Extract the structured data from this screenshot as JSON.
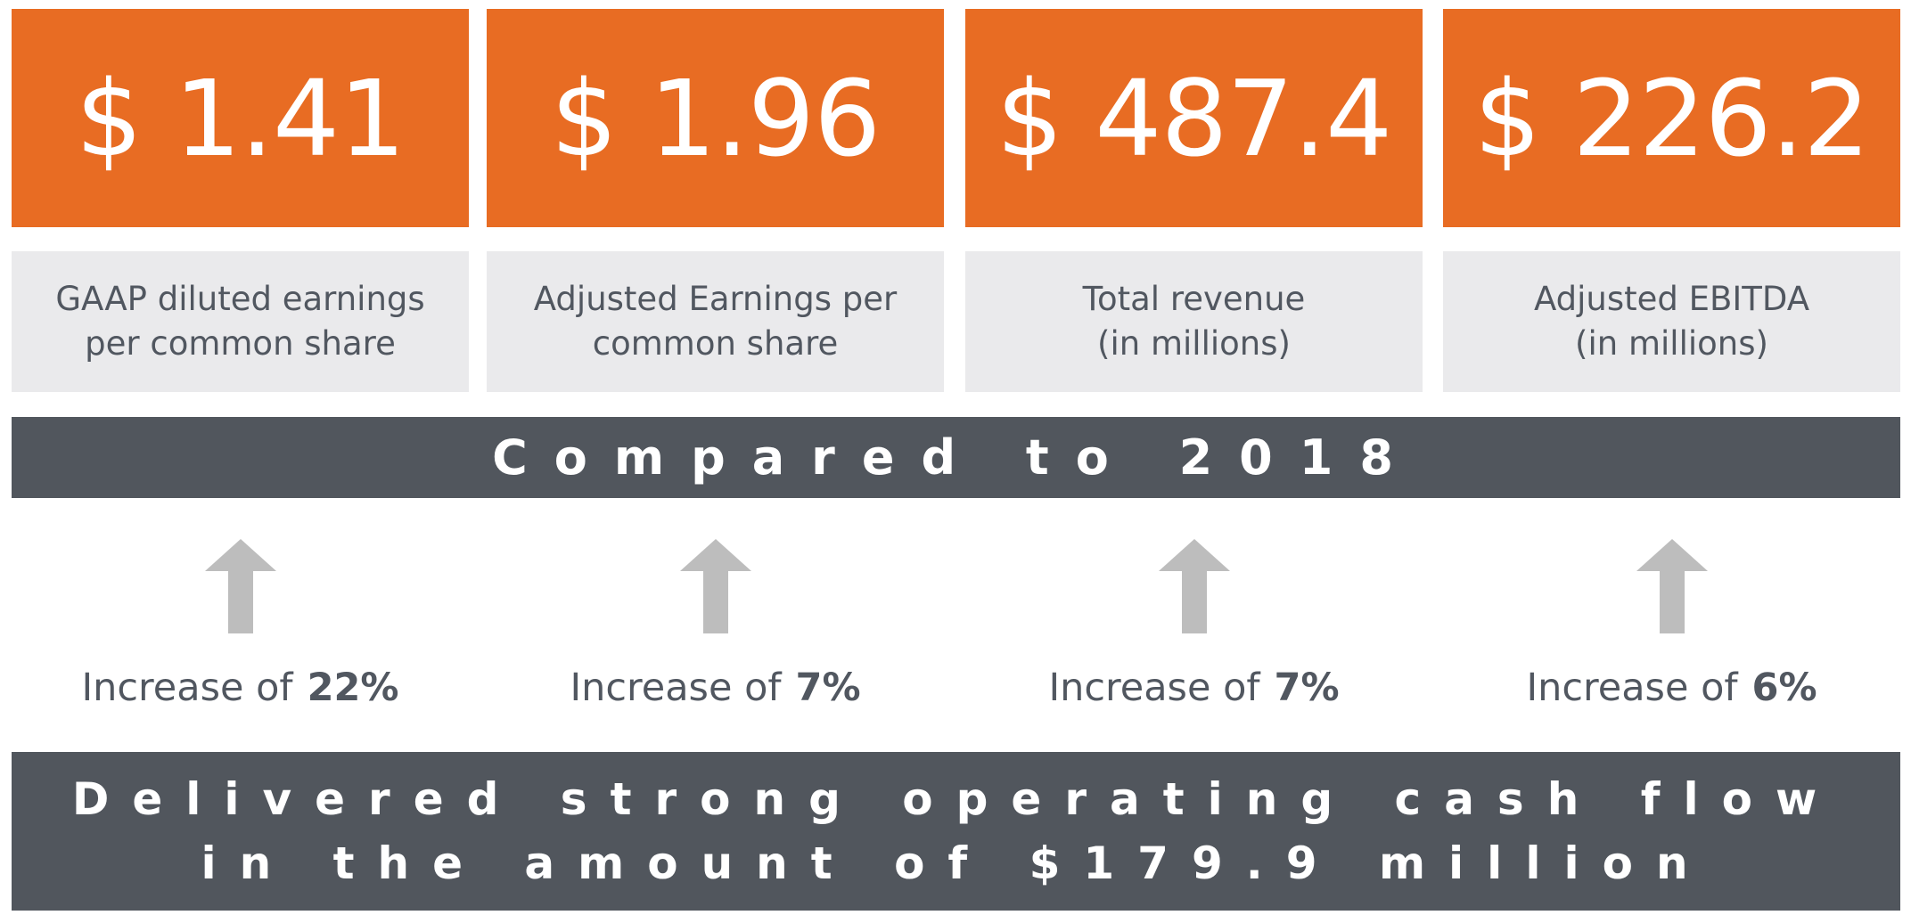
{
  "colors": {
    "accent": "#E86C23",
    "label_bg": "#EAEAEC",
    "dark_bar": "#51565D",
    "text_gray": "#515760",
    "arrow_gray": "#BDBDBD"
  },
  "metrics": [
    {
      "value": "$ 1.41",
      "label": "GAAP diluted earnings\nper common share"
    },
    {
      "value": "$ 1.96",
      "label": "Adjusted Earnings per\ncommon share"
    },
    {
      "value": "$ 487.4",
      "label": "Total revenue\n(in millions)"
    },
    {
      "value": "$ 226.2",
      "label": "Adjusted EBITDA\n(in millions)"
    }
  ],
  "comparison_title": "Compared to 2018",
  "trends": [
    {
      "icon": "arrow-up-icon",
      "prefix": "Increase of",
      "percent": "22%"
    },
    {
      "icon": "arrow-up-icon",
      "prefix": "Increase of",
      "percent": "7%"
    },
    {
      "icon": "arrow-up-icon",
      "prefix": "Increase of",
      "percent": "7%"
    },
    {
      "icon": "arrow-up-icon",
      "prefix": "Increase of",
      "percent": "6%"
    }
  ],
  "cash_flow": {
    "line1": "Delivered strong operating cash flow",
    "line2": "in the amount of $179.9 million"
  }
}
